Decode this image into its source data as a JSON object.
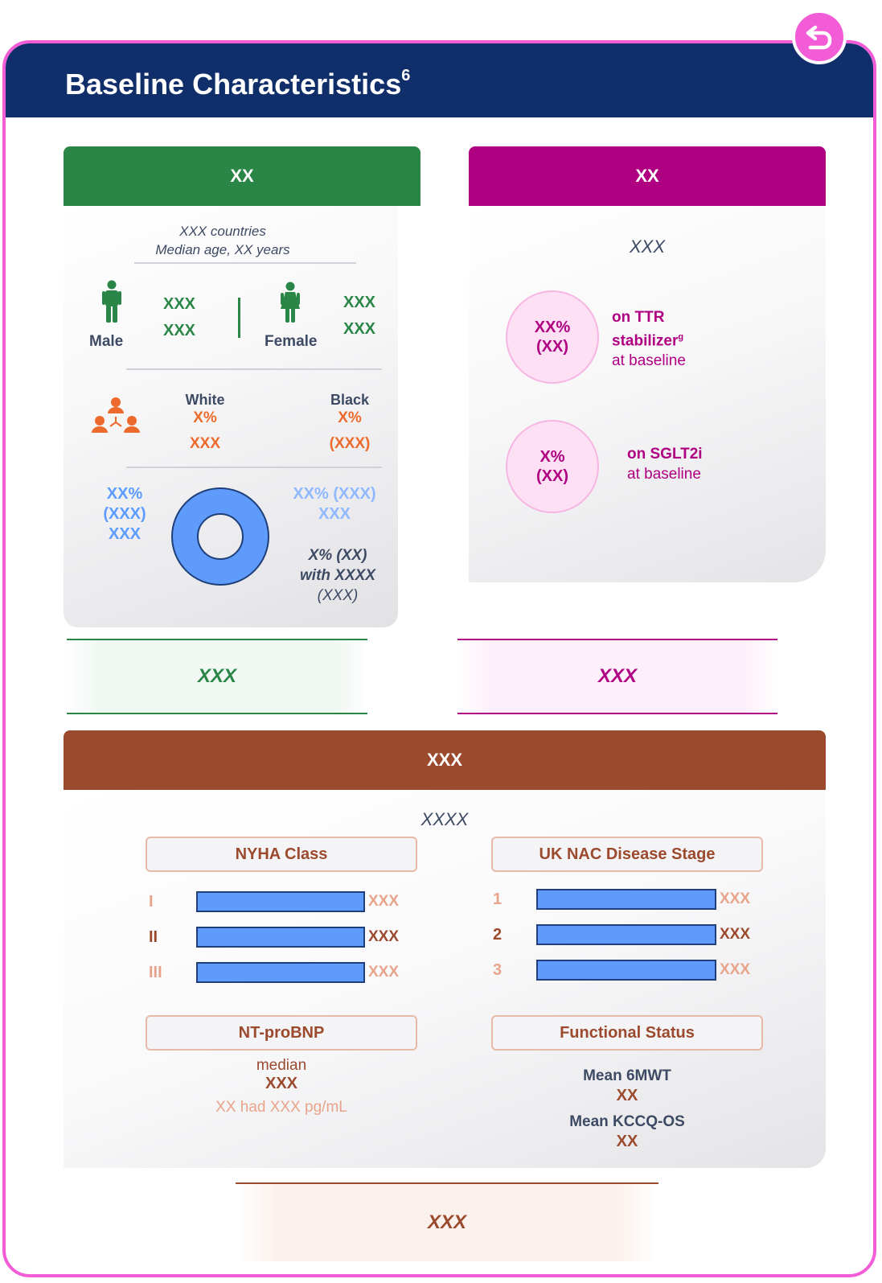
{
  "header": {
    "title": "Baseline Characteristics",
    "title_sup": "6"
  },
  "back_button": {
    "icon": "return-arrow-icon"
  },
  "colors": {
    "navy": "#102e6a",
    "green": "#2a8647",
    "magenta": "#b00082",
    "rust": "#9b4a2d",
    "pink_border": "#f25cd6",
    "bar_blue": "#5f9bfa"
  },
  "left_card": {
    "band_label": "XX",
    "countries": "XXX countries",
    "median_age": "Median age, XX years",
    "male": {
      "label": "Male",
      "val1": "XXX",
      "val2": "XXX",
      "icon": "male-person-icon"
    },
    "female": {
      "label": "Female",
      "val1": "XXX",
      "val2": "XXX",
      "icon": "female-person-icon"
    },
    "race_icon": "people-group-icon",
    "white": {
      "label": "White",
      "pct": "X%",
      "val": "XXX"
    },
    "black": {
      "label": "Black",
      "pct": "X%",
      "val": "(XXX)"
    },
    "donut_left": {
      "l1": "XX%",
      "l2": "(XXX)",
      "l3": "XXX"
    },
    "donut_right": {
      "l1": "XX% (XXX)",
      "l2": "XXX"
    },
    "with_note": {
      "l1": "X% (XX)",
      "l2": "with XXXX",
      "l3": "(XXX)"
    }
  },
  "right_card": {
    "band_label": "XX",
    "subtitle": "XXX",
    "stat1": {
      "l1": "XX%",
      "l2": "(XX)",
      "t1": "on TTR",
      "t2": "stabilizer",
      "t2_sup": "g",
      "t3": "at baseline"
    },
    "stat2": {
      "l1": "X%",
      "l2": "(XX)",
      "t1": "on SGLT2i",
      "t2": "at baseline"
    }
  },
  "callouts": {
    "green": "XXX",
    "magenta": "XXX",
    "rust": "XXX"
  },
  "bottom": {
    "band_label": "XXX",
    "subtitle": "XXXX",
    "nyha": {
      "title": "NYHA Class",
      "rows": [
        {
          "label": "I",
          "value": "XXX",
          "fill": 1.0
        },
        {
          "label": "II",
          "value": "XXX",
          "fill": 1.0
        },
        {
          "label": "III",
          "value": "XXX",
          "fill": 1.0
        }
      ]
    },
    "uknac": {
      "title": "UK NAC Disease Stage",
      "rows": [
        {
          "label": "1",
          "value": "XXX",
          "fill": 1.0
        },
        {
          "label": "2",
          "value": "XXX",
          "fill": 1.0
        },
        {
          "label": "3",
          "value": "XXX",
          "fill": 1.0
        }
      ]
    },
    "ntprobnp": {
      "title": "NT-proBNP",
      "l1": "median",
      "l2": "XXX",
      "l3": "XX had XXX pg/mL"
    },
    "functional": {
      "title": "Functional Status",
      "l1": "Mean 6MWT",
      "l2": "XX",
      "l3": "Mean KCCQ-OS",
      "l4": "XX"
    }
  }
}
